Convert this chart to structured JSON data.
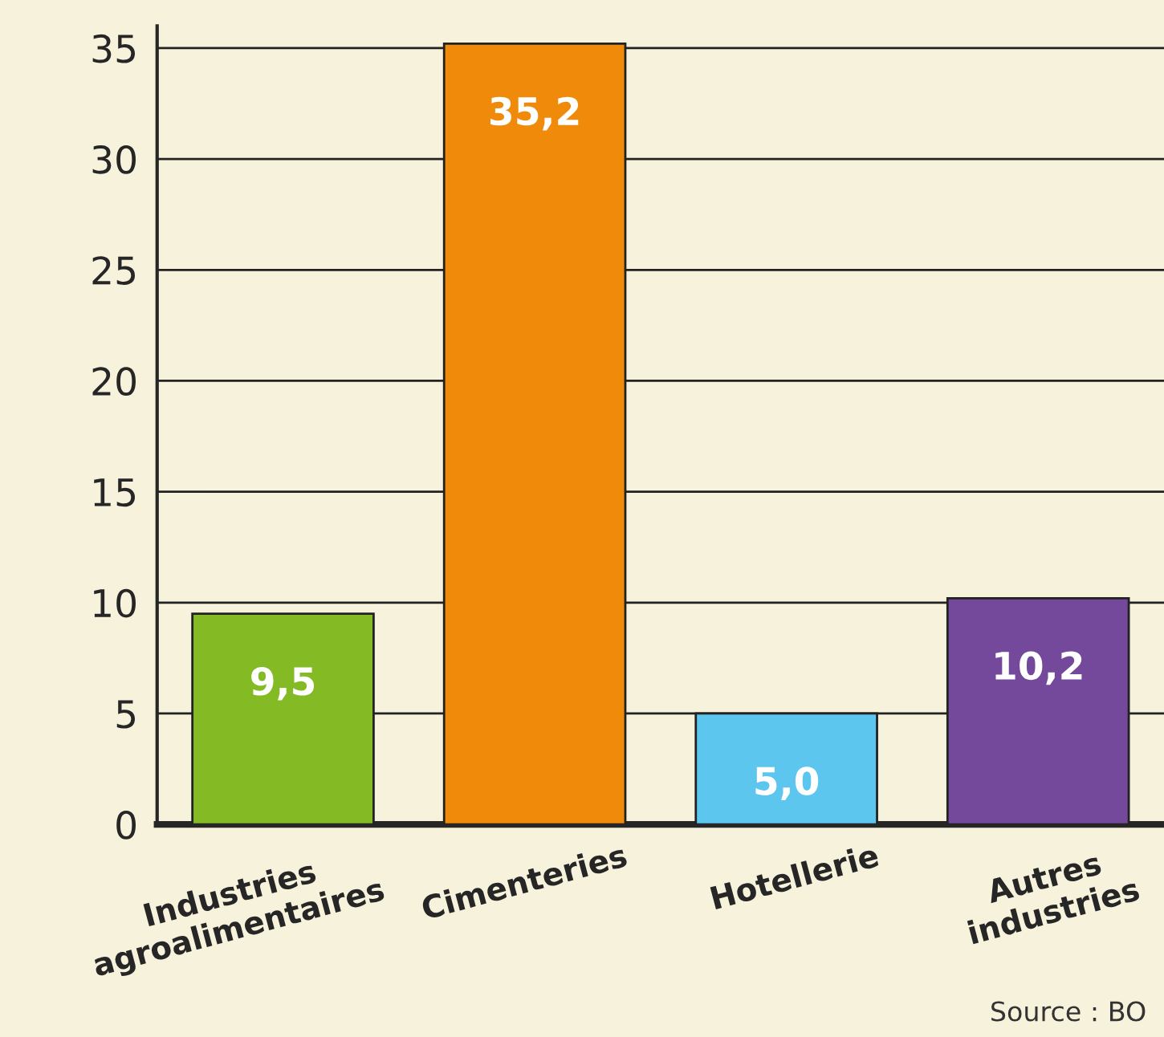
{
  "chart_data": {
    "type": "bar",
    "categories": [
      "Industries\nagroalimentaires",
      "Cimenteries",
      "Hotellerie",
      "Autres\nindustries"
    ],
    "values": [
      9.5,
      35.2,
      5.0,
      10.2
    ],
    "value_labels": [
      "9,5",
      "35,2",
      "5,0",
      "10,2"
    ],
    "colors": [
      "#84bb24",
      "#f08a0a",
      "#5cc6ee",
      "#74489a"
    ],
    "ylim": [
      0,
      36
    ],
    "yticks": [
      0,
      5,
      10,
      15,
      20,
      25,
      30,
      35
    ],
    "grid": "y",
    "annotations": [
      "Source : BO"
    ]
  }
}
